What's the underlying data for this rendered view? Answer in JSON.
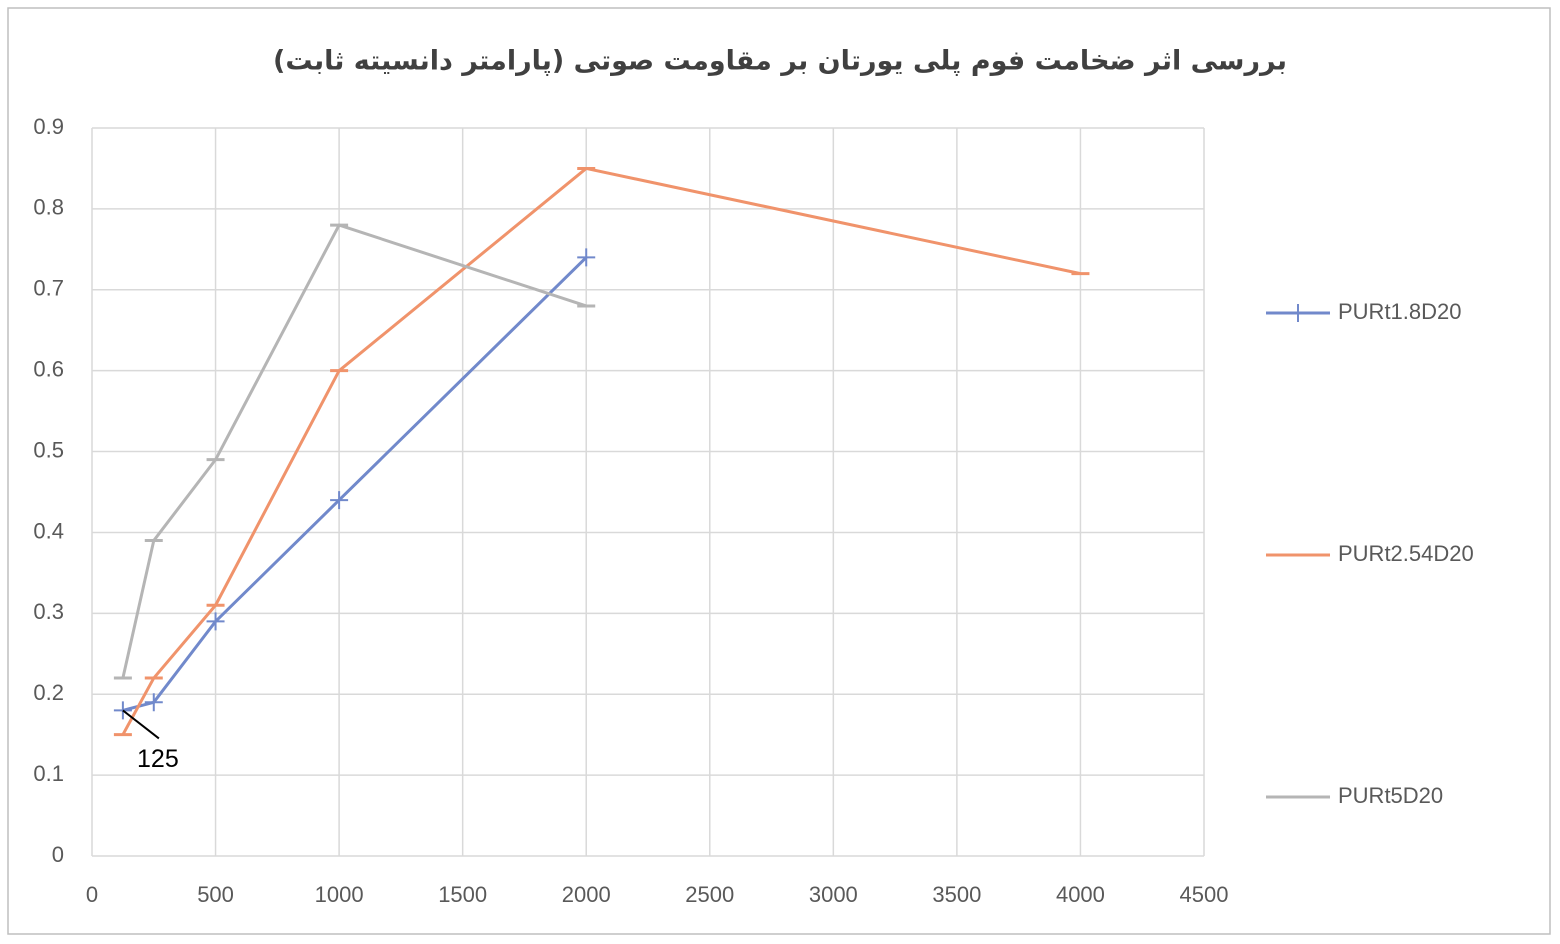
{
  "chart_data": {
    "type": "line",
    "title": "بررسی اثر ضخامت فوم پلی یورتان بر مقاومت صوتی (پارامتر دانسیته ثابت)",
    "series": [
      {
        "name": "PURt1.8D20",
        "color": "#7189cb",
        "marker": "plus",
        "x": [
          125,
          250,
          500,
          1000,
          2000
        ],
        "values": [
          0.18,
          0.19,
          0.29,
          0.44,
          0.74
        ]
      },
      {
        "name": "PURt2.54D20",
        "color": "#f0936b",
        "marker": "dash",
        "x": [
          125,
          250,
          500,
          1000,
          2000,
          4000
        ],
        "values": [
          0.15,
          0.22,
          0.31,
          0.6,
          0.85,
          0.72
        ]
      },
      {
        "name": "PURt5D20",
        "color": "#b5b5b5",
        "marker": "dash",
        "x": [
          125,
          250,
          500,
          1000,
          2000
        ],
        "values": [
          0.22,
          0.39,
          0.49,
          0.78,
          0.68
        ]
      }
    ],
    "xlim": [
      0,
      4500
    ],
    "xticks": [
      0,
      500,
      1000,
      1500,
      2000,
      2500,
      3000,
      3500,
      4000,
      4500
    ],
    "ylim": [
      0,
      0.9
    ],
    "yticks": [
      0,
      0.1,
      0.2,
      0.3,
      0.4,
      0.5,
      0.6,
      0.7,
      0.8,
      0.9
    ],
    "grid": true,
    "legend": "right",
    "annotations": [
      {
        "text": "125",
        "x": 125,
        "y": 0.18
      }
    ]
  }
}
